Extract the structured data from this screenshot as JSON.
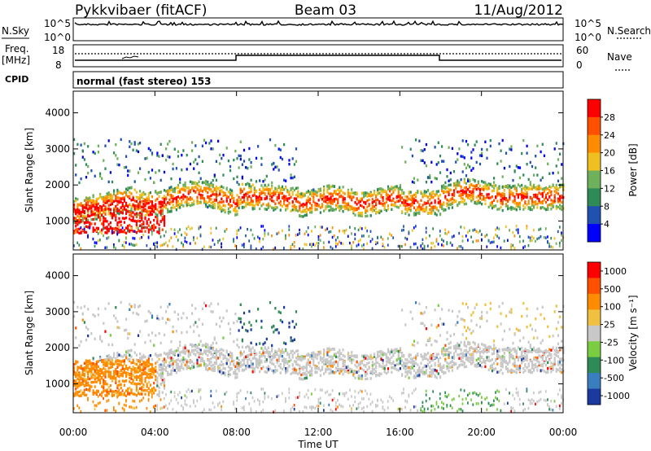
{
  "header": {
    "station": "Pykkvibaer (fitACF)",
    "beam": "Beam 03",
    "date": "11/Aug/2012"
  },
  "panels": {
    "nsky": {
      "left_label": "N.Sky",
      "left_ticks": [
        "10^5",
        "10^0"
      ],
      "right_ticks": [
        "10^5",
        "10^0"
      ],
      "right_label": "N.Search"
    },
    "freq": {
      "left_label_1": "Freq.",
      "left_label_2": "[MHz]",
      "left_ticks": [
        "18",
        "8"
      ],
      "right_ticks": [
        "60",
        "0"
      ],
      "right_label": "Nave"
    },
    "cpid": {
      "label": "CPID",
      "text": "normal (fast stereo) 153"
    }
  },
  "chart_data": [
    {
      "type": "heatmap",
      "name": "power",
      "ylabel": "Slant Range [km]",
      "yticks": [
        1000,
        2000,
        3000,
        4000
      ],
      "ylim": [
        200,
        4600
      ],
      "xlim": [
        0,
        24
      ],
      "colorbar_label": "Power [dB]",
      "colorbar_ticks": [
        "4",
        "8",
        "12",
        "16",
        "20",
        "24",
        "28"
      ],
      "colors": [
        "#0000ff",
        "#2050b0",
        "#2e8b57",
        "#6fb05a",
        "#f0c020",
        "#ff8c00",
        "#ff5000",
        "#ff0000"
      ]
    },
    {
      "type": "heatmap",
      "name": "velocity",
      "ylabel": "Slant Range [km]",
      "yticks": [
        1000,
        2000,
        3000,
        4000
      ],
      "ylim": [
        200,
        4600
      ],
      "xlim": [
        0,
        24
      ],
      "xticks": [
        "00:00",
        "04:00",
        "08:00",
        "12:00",
        "16:00",
        "20:00",
        "00:00"
      ],
      "xlabel": "Time UT",
      "colorbar_label": "Velocity [m s⁻¹]",
      "colorbar_ticks": [
        "1000",
        "500",
        "100",
        "25",
        "-25",
        "-100",
        "-500",
        "-1000"
      ],
      "colors": [
        "#1a3aa0",
        "#3a7ec0",
        "#2e8b57",
        "#7acc40",
        "#c8c8c8",
        "#f0c040",
        "#ff8c00",
        "#ff5000",
        "#ff0000"
      ]
    }
  ]
}
